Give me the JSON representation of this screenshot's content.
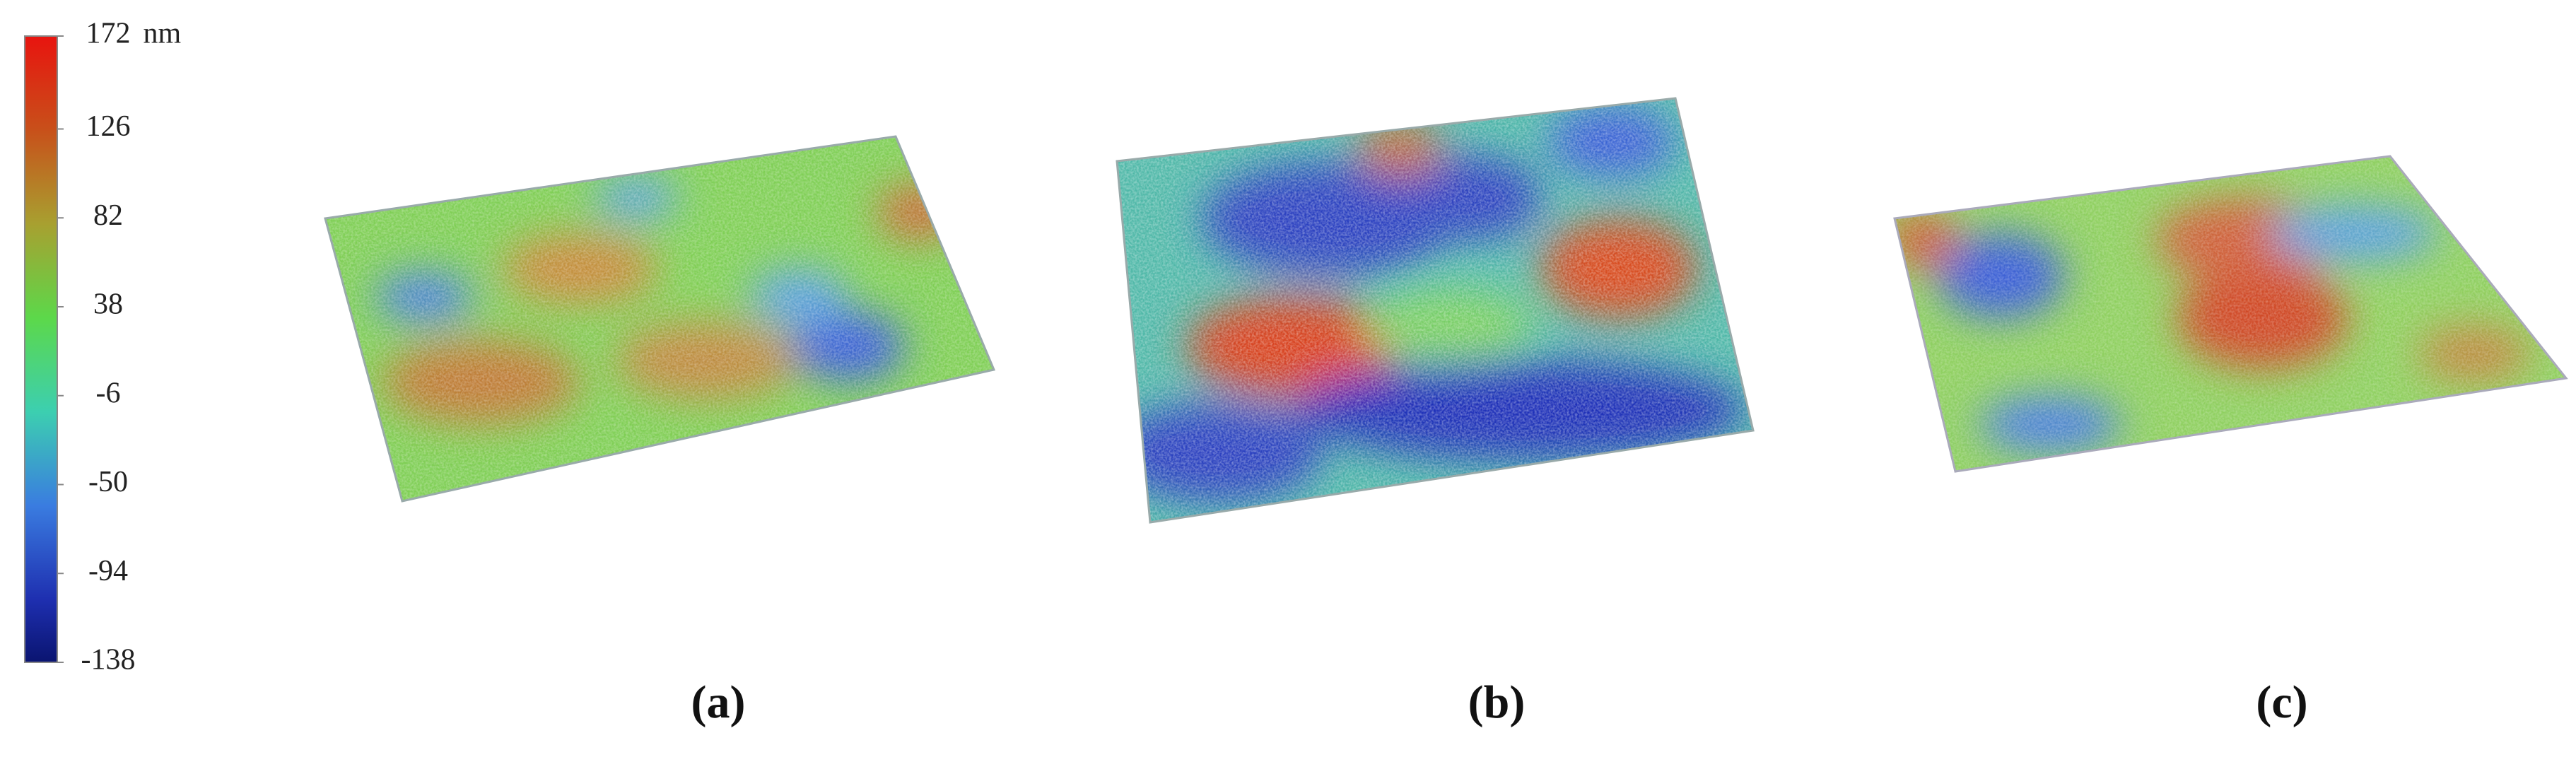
{
  "colorbar": {
    "lim": [
      -138,
      172
    ],
    "ticks": [
      172,
      126,
      82,
      38,
      -6,
      -50,
      -94,
      -138
    ],
    "unit": "nm"
  },
  "panels": [
    {
      "label": "(a)"
    },
    {
      "label": "(b)"
    },
    {
      "label": "(c)"
    }
  ]
}
